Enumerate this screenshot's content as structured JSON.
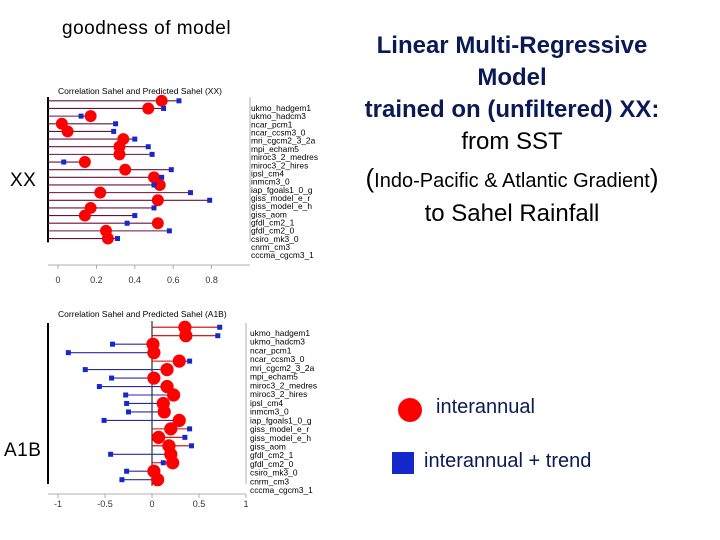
{
  "page": {
    "goodness_label": "goodness of model",
    "row_label_xx": "XX",
    "row_label_a1b": "A1B",
    "title_lines": [
      "Linear Multi-Regressive",
      "Model",
      "trained on (unfiltered) XX:",
      "from SST"
    ],
    "title_gradient": "Indo-Pacific & Atlantic Gradient",
    "title_last": "to Sahel Rainfall",
    "legend_interannual": "interannual",
    "legend_trend": "interannual + trend"
  },
  "colors": {
    "circle": "#ff0000",
    "square": "#1428cc",
    "line_blue": "#2a2aa0",
    "line_red": "#cc0000",
    "line_purple": "#6a1040"
  },
  "chart_data": [
    {
      "type": "scatter",
      "title": "Correlation Sahel and Predicted Sahel (XX)",
      "xlim": [
        0,
        1
      ],
      "xticks": [
        0,
        0.2,
        0.4,
        0.6,
        0.8
      ],
      "categories": [
        "ukmo_hadgem1",
        "ukmo_hadcm3",
        "ncar_pcm1",
        "ncar_ccsm3_0",
        "mri_cgcm2_3_2a",
        "mpi_echam5",
        "miroc3_2_medres",
        "miroc3_2_hires",
        "ipsl_cm4",
        "inmcm3_0",
        "iap_fgoals1_0_g",
        "giss_model_e_r",
        "giss_model_e_h",
        "giss_aom",
        "gfdl_cm2_1",
        "gfdl_cm2_0",
        "csiro_mk3_0",
        "cnrm_cm3",
        "cccma_cgcm3_1"
      ],
      "series": [
        {
          "name": "interannual",
          "marker": "circle",
          "values": [
            0.54,
            0.47,
            0.17,
            0.02,
            0.05,
            0.34,
            0.32,
            0.32,
            0.14,
            0.35,
            0.5,
            0.53,
            0.22,
            0.52,
            0.17,
            0.14,
            0.52,
            0.25,
            0.26
          ]
        },
        {
          "name": "interannual + trend",
          "marker": "square",
          "values": [
            0.63,
            0.55,
            0.12,
            0.3,
            0.29,
            0.4,
            0.47,
            0.49,
            0.03,
            0.59,
            0.54,
            0.5,
            0.69,
            0.79,
            0.5,
            0.4,
            0.36,
            0.58,
            0.31
          ]
        }
      ]
    },
    {
      "type": "scatter",
      "title": "Correlation Sahel and Predicted Sahel (A1B)",
      "xlim": [
        -1,
        1
      ],
      "xticks": [
        -1,
        -0.5,
        0,
        0.5,
        1
      ],
      "xtick_labels": [
        "-1",
        "-0.5",
        "0",
        "0.5",
        "1"
      ],
      "categories": [
        "ukmo_hadgem1",
        "ukmo_hadcm3",
        "ncar_pcm1",
        "ncar_ccsm3_0",
        "mri_cgcm2_3_2a",
        "mpi_echam5",
        "miroc3_2_medres",
        "miroc3_2_hires",
        "ipsl_cm4",
        "inmcm3_0",
        "iap_fgoals1_0_g",
        "giss_model_e_r",
        "giss_model_e_h",
        "giss_aom",
        "gfdl_cm2_1",
        "gfdl_cm2_0",
        "csiro_mk3_0",
        "cnrm_cm3",
        "cccma_cgcm3_1"
      ],
      "series": [
        {
          "name": "interannual",
          "marker": "circle",
          "values": [
            0.35,
            0.36,
            0.01,
            0.02,
            0.29,
            0.16,
            0.02,
            0.16,
            0.23,
            0.12,
            0.13,
            0.29,
            0.2,
            0.07,
            0.18,
            0.2,
            0.22,
            0.02,
            0.06
          ]
        },
        {
          "name": "interannual + trend",
          "marker": "square",
          "values": [
            0.72,
            0.7,
            -0.42,
            -0.89,
            0.4,
            -0.71,
            -0.43,
            -0.56,
            -0.28,
            -0.27,
            -0.25,
            -0.51,
            0.4,
            0.35,
            0.42,
            -0.44,
            0.12,
            -0.27,
            -0.32
          ]
        }
      ]
    }
  ]
}
